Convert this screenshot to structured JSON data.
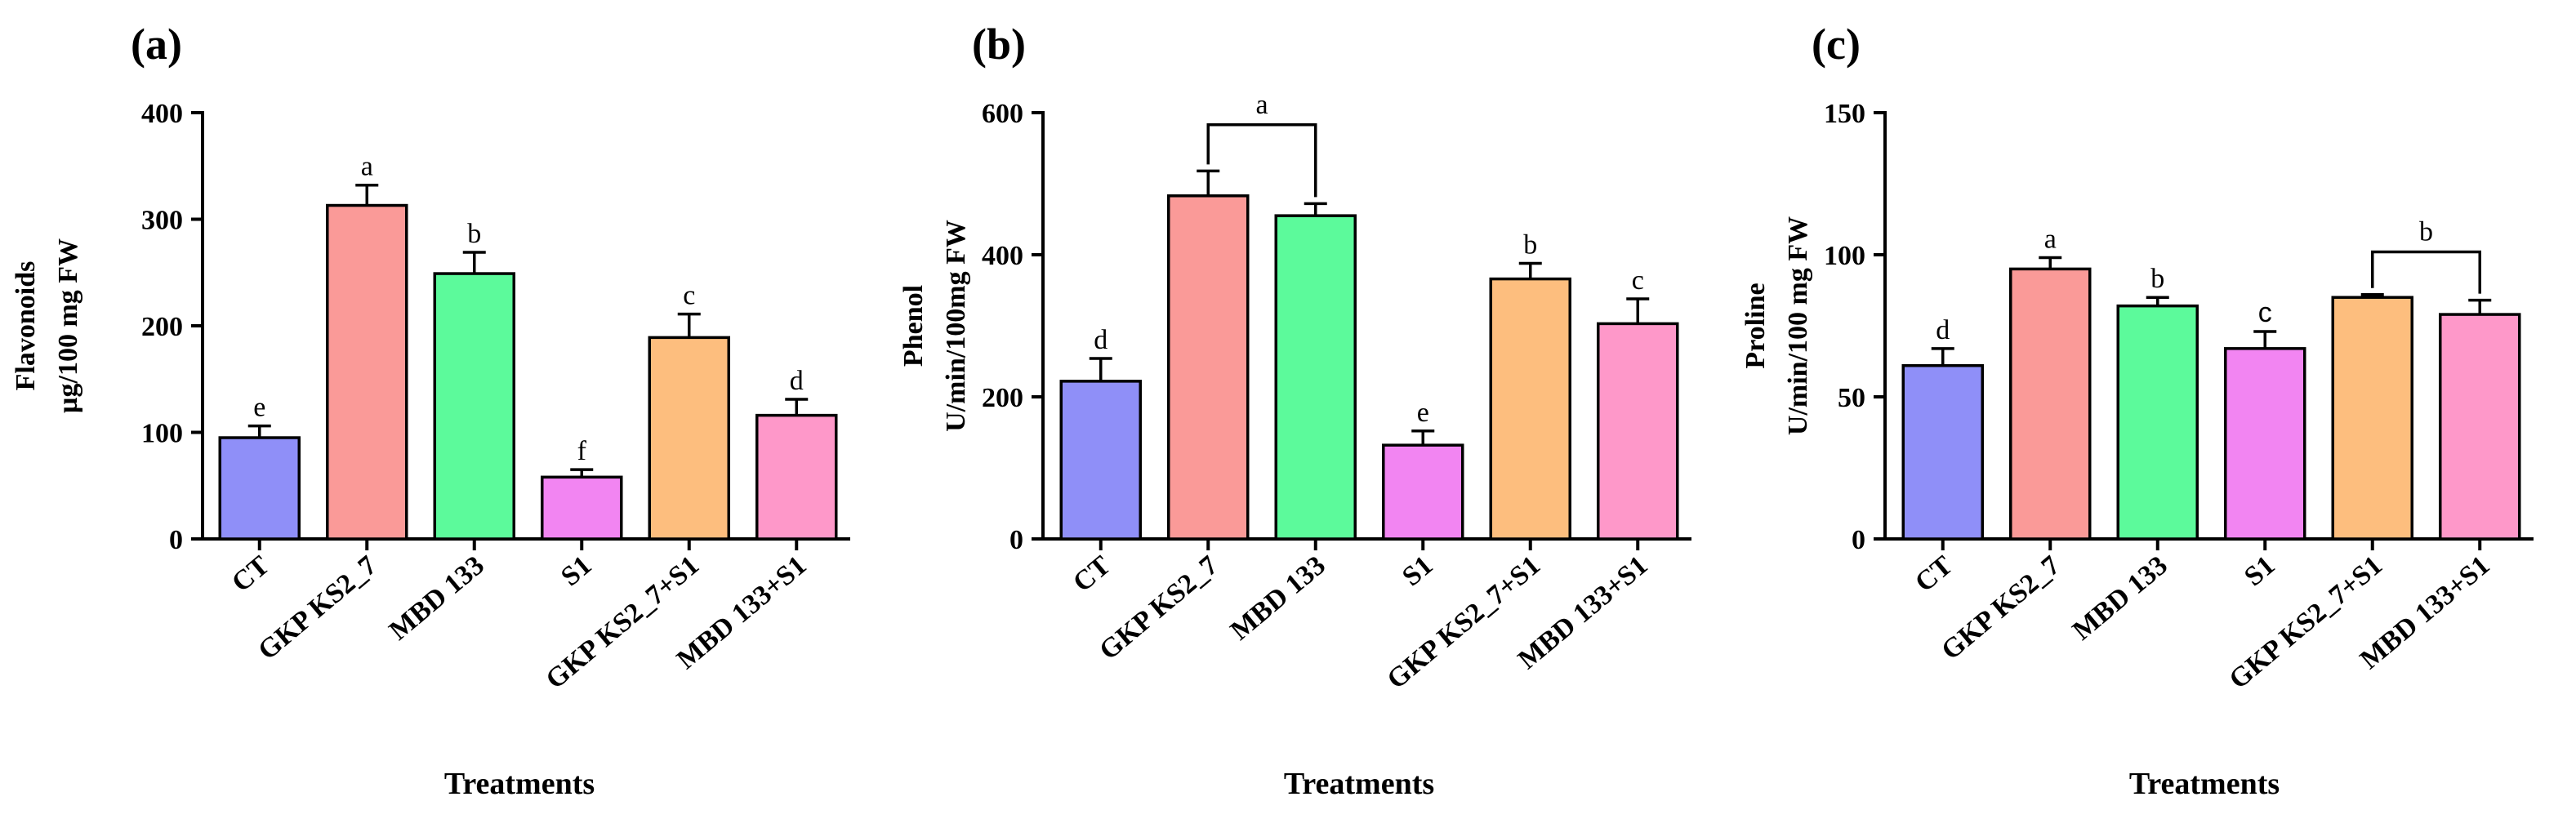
{
  "chart_data": [
    {
      "type": "bar",
      "panel_label": "(a)",
      "ylabel_line1": "Flavonoids",
      "ylabel_line2": "µg/100 mg FW",
      "xlabel": "Treatments",
      "categories": [
        "CT",
        "GKP KS2_7",
        "MBD 133",
        "S1",
        "GKP KS2_7+S1",
        "MBD 133+S1"
      ],
      "values": [
        95,
        313,
        249,
        58,
        189,
        116
      ],
      "errors": [
        11,
        19,
        20,
        7,
        22,
        15
      ],
      "significance": [
        "e",
        "a",
        "b",
        "f",
        "c",
        "d"
      ],
      "colors": [
        "#8f8ff8",
        "#fa9a98",
        "#5cfa9b",
        "#f285f2",
        "#fdbe7e",
        "#fe98c9"
      ],
      "ylim": [
        0,
        400
      ],
      "yticks": [
        0,
        100,
        200,
        300,
        400
      ],
      "bracket": null
    },
    {
      "type": "bar",
      "panel_label": "(b)",
      "ylabel_line1": "Phenol",
      "ylabel_line2": "U/min/100mg FW",
      "xlabel": "Treatments",
      "categories": [
        "CT",
        "GKP KS2_7",
        "MBD 133",
        "S1",
        "GKP KS2_7+S1",
        "MBD 133+S1"
      ],
      "values": [
        222,
        483,
        455,
        132,
        366,
        303
      ],
      "errors": [
        32,
        35,
        17,
        20,
        22,
        35
      ],
      "significance": [
        "d",
        "",
        "",
        "e",
        "b",
        "c"
      ],
      "colors": [
        "#8f8ff8",
        "#fa9a98",
        "#5cfa9b",
        "#f285f2",
        "#fdbe7e",
        "#fe98c9"
      ],
      "ylim": [
        0,
        600
      ],
      "yticks": [
        0,
        200,
        400,
        600
      ],
      "bracket": {
        "from": 1,
        "to": 2,
        "label": "a",
        "y": 583
      }
    },
    {
      "type": "bar",
      "panel_label": "(c)",
      "ylabel_line1": "Proline",
      "ylabel_line2": "U/min/100 mg FW",
      "xlabel": "Treatments",
      "categories": [
        "CT",
        "GKP KS2_7",
        "MBD 133",
        "S1",
        "GKP KS2_7+S1",
        "MBD 133+S1"
      ],
      "values": [
        61,
        95,
        82,
        67,
        85,
        79
      ],
      "errors": [
        6,
        4,
        3,
        6,
        1,
        5
      ],
      "significance": [
        "d",
        "a",
        "b",
        "c",
        "",
        ""
      ],
      "colors": [
        "#8f8ff8",
        "#fa9a98",
        "#5cfa9b",
        "#f285f2",
        "#fdbe7e",
        "#fe98c9"
      ],
      "ylim": [
        0,
        150
      ],
      "yticks": [
        0,
        50,
        100,
        150
      ],
      "bracket": {
        "from": 4,
        "to": 5,
        "label": "b",
        "y": 101
      }
    }
  ]
}
